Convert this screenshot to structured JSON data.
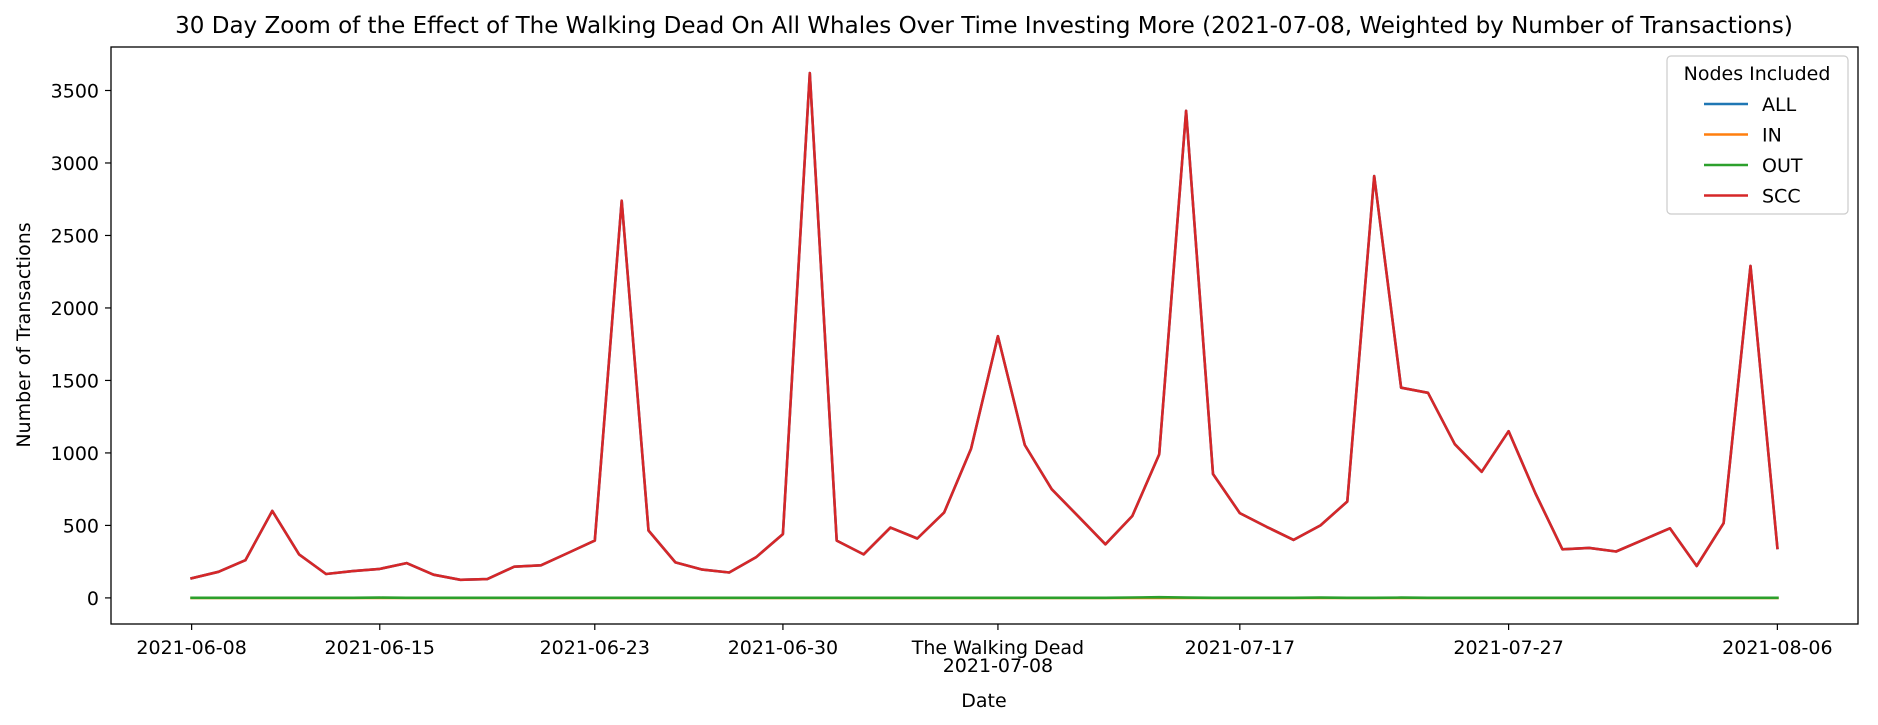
{
  "chart_data": {
    "type": "line",
    "title": "30 Day Zoom of the Effect of The Walking Dead On All Whales Over Time Investing More (2021-07-08, Weighted by Number of Transactions)",
    "xlabel": "Date",
    "ylabel": "Number of Transactions",
    "ylim": [
      -180,
      3800
    ],
    "yticks": [
      0,
      500,
      1000,
      1500,
      2000,
      2500,
      3000,
      3500
    ],
    "xlim": [
      "2021-06-05",
      "2021-08-09"
    ],
    "xticks": [
      {
        "date": "2021-06-08",
        "label": "2021-06-08"
      },
      {
        "date": "2021-06-15",
        "label": "2021-06-15"
      },
      {
        "date": "2021-06-23",
        "label": "2021-06-23"
      },
      {
        "date": "2021-06-30",
        "label": "2021-06-30"
      },
      {
        "date": "2021-07-08",
        "label": "2021-07-08"
      },
      {
        "date": "2021-07-17",
        "label": "2021-07-17"
      },
      {
        "date": "2021-07-27",
        "label": "2021-07-27"
      },
      {
        "date": "2021-08-06",
        "label": "2021-08-06"
      }
    ],
    "event": {
      "date": "2021-07-08",
      "label": "The Walking Dead"
    },
    "legend": {
      "title": "Nodes Included",
      "position": "top-right"
    },
    "grid": false,
    "dates": [
      "2021-06-08",
      "2021-06-09",
      "2021-06-10",
      "2021-06-11",
      "2021-06-12",
      "2021-06-13",
      "2021-06-14",
      "2021-06-15",
      "2021-06-16",
      "2021-06-17",
      "2021-06-18",
      "2021-06-19",
      "2021-06-20",
      "2021-06-21",
      "2021-06-22",
      "2021-06-23",
      "2021-06-24",
      "2021-06-25",
      "2021-06-26",
      "2021-06-27",
      "2021-06-28",
      "2021-06-29",
      "2021-06-30",
      "2021-07-01",
      "2021-07-02",
      "2021-07-03",
      "2021-07-04",
      "2021-07-05",
      "2021-07-06",
      "2021-07-07",
      "2021-07-08",
      "2021-07-09",
      "2021-07-10",
      "2021-07-11",
      "2021-07-12",
      "2021-07-13",
      "2021-07-14",
      "2021-07-15",
      "2021-07-16",
      "2021-07-17",
      "2021-07-18",
      "2021-07-19",
      "2021-07-20",
      "2021-07-21",
      "2021-07-22",
      "2021-07-23",
      "2021-07-24",
      "2021-07-25",
      "2021-07-26",
      "2021-07-27",
      "2021-07-28",
      "2021-07-29",
      "2021-07-30",
      "2021-07-31",
      "2021-08-01",
      "2021-08-02",
      "2021-08-03",
      "2021-08-04",
      "2021-08-05",
      "2021-08-06"
    ],
    "series": [
      {
        "name": "ALL",
        "color": "#1f77b4",
        "values": [
          135,
          180,
          260,
          600,
          300,
          165,
          185,
          200,
          240,
          160,
          125,
          130,
          215,
          225,
          310,
          395,
          2740,
          465,
          245,
          195,
          175,
          280,
          440,
          3620,
          395,
          300,
          485,
          410,
          590,
          1030,
          1805,
          1055,
          750,
          560,
          370,
          565,
          990,
          3360,
          855,
          585,
          490,
          400,
          500,
          665,
          2910,
          1450,
          1415,
          1060,
          870,
          1150,
          720,
          335,
          345,
          320,
          400,
          480,
          220,
          515,
          2290,
          345
        ]
      },
      {
        "name": "IN",
        "color": "#ff7f0e",
        "values": [
          0,
          0,
          0,
          0,
          0,
          0,
          0,
          0,
          0,
          0,
          0,
          0,
          0,
          0,
          0,
          0,
          0,
          0,
          0,
          0,
          0,
          0,
          0,
          0,
          0,
          0,
          0,
          0,
          0,
          0,
          0,
          0,
          0,
          0,
          0,
          0,
          0,
          0,
          0,
          0,
          0,
          0,
          0,
          0,
          0,
          0,
          0,
          0,
          0,
          0,
          0,
          0,
          0,
          0,
          0,
          0,
          0,
          0,
          0,
          0
        ]
      },
      {
        "name": "OUT",
        "color": "#2ca02c",
        "values": [
          1,
          1,
          1,
          1,
          1,
          1,
          1,
          2,
          1,
          1,
          1,
          1,
          1,
          1,
          1,
          1,
          1,
          1,
          1,
          1,
          1,
          1,
          1,
          1,
          1,
          1,
          1,
          1,
          1,
          1,
          1,
          1,
          1,
          1,
          1,
          3,
          5,
          2,
          1,
          1,
          1,
          1,
          2,
          1,
          1,
          2,
          1,
          1,
          1,
          1,
          1,
          1,
          1,
          1,
          1,
          1,
          1,
          1,
          1,
          1
        ]
      },
      {
        "name": "SCC",
        "color": "#d62728",
        "values": [
          135,
          180,
          260,
          600,
          300,
          165,
          185,
          200,
          240,
          160,
          125,
          130,
          215,
          225,
          310,
          395,
          2740,
          465,
          245,
          195,
          175,
          280,
          440,
          3620,
          395,
          300,
          485,
          410,
          590,
          1030,
          1805,
          1055,
          750,
          560,
          370,
          565,
          990,
          3360,
          855,
          585,
          490,
          400,
          500,
          665,
          2910,
          1450,
          1415,
          1060,
          870,
          1150,
          720,
          335,
          345,
          320,
          400,
          480,
          220,
          515,
          2290,
          345
        ]
      }
    ]
  }
}
